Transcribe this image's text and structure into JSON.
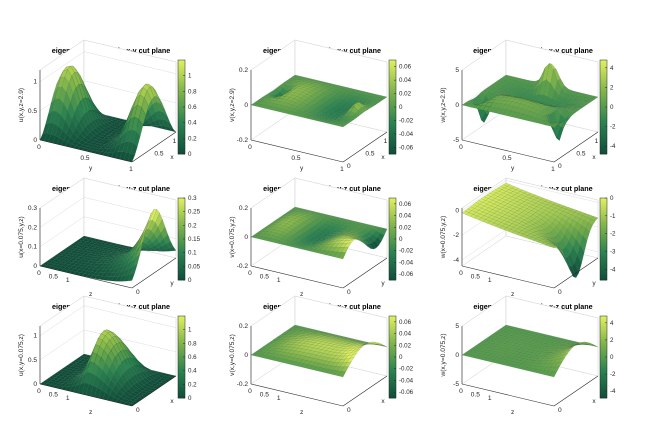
{
  "chart_data": [
    {
      "type": "surface",
      "title": "eigenmode u(x,y,z) in x-y cut plane",
      "xlabel": "y",
      "ylabel": "x",
      "zlabel": "u(x,y,z=2.9)",
      "x_range": [
        0,
        1
      ],
      "y_range": [
        0,
        1.2
      ],
      "z_range": [
        0,
        1.2
      ],
      "x_ticks": [
        "0.5",
        "1"
      ],
      "y_ticks": [
        "0",
        "0.5",
        "1"
      ],
      "z_ticks": [
        "0",
        "0.5",
        "1"
      ],
      "colorbar": {
        "range": [
          0,
          1.2
        ],
        "ticks": [
          "0",
          "0.2",
          "0.4",
          "0.6",
          "0.8",
          "1"
        ]
      },
      "colormap": [
        "#0f4d3a",
        "#2a8250",
        "#7fb34a",
        "#e0f060"
      ]
    },
    {
      "type": "surface",
      "title": "eigenmode v(x,y,z) in x-y cut plane",
      "xlabel": "y",
      "ylabel": "x",
      "zlabel": "v(x,y,z=2.9)",
      "x_range": [
        0,
        1
      ],
      "y_range": [
        0,
        1.2
      ],
      "z_range": [
        -0.2,
        0.2
      ],
      "x_ticks": [
        "0",
        "0.5",
        "1"
      ],
      "y_ticks": [
        "0",
        "0.5",
        "1"
      ],
      "z_ticks": [
        "-0.2",
        "0",
        "0.2"
      ],
      "colorbar": {
        "range": [
          -0.07,
          0.07
        ],
        "ticks": [
          "-0.06",
          "-0.04",
          "-0.02",
          "0",
          "0.02",
          "0.04",
          "0.06"
        ]
      },
      "colormap": [
        "#0f4d3a",
        "#2a8250",
        "#7fb34a",
        "#e0f060"
      ]
    },
    {
      "type": "surface",
      "title": "eigenmode w(x,y,z) in x-y cut plane",
      "xlabel": "y",
      "ylabel": "x",
      "zlabel": "w(x,y,z=2.9)",
      "x_range": [
        0,
        1
      ],
      "y_range": [
        0,
        1.2
      ],
      "z_range": [
        -5,
        5
      ],
      "x_ticks": [
        "0",
        "0.5",
        "1"
      ],
      "y_ticks": [
        "0",
        "0.5",
        "1"
      ],
      "z_ticks": [
        "-5",
        "0",
        "5"
      ],
      "colorbar": {
        "range": [
          -4.8,
          4.8
        ],
        "ticks": [
          "-4",
          "-2",
          "0",
          "2",
          "4"
        ]
      },
      "colormap": [
        "#0f4d3a",
        "#2a8250",
        "#7fb34a",
        "#e0f060"
      ]
    },
    {
      "type": "surface",
      "title": "eigenmode u(x,y,z) in y-z cut plane",
      "xlabel": "z",
      "ylabel": "y",
      "zlabel": "u(x=0.075,y,z)",
      "x_range": [
        0,
        3.2
      ],
      "y_range": [
        0,
        1
      ],
      "z_range": [
        0,
        0.3
      ],
      "x_ticks": [
        "0",
        "1",
        "2",
        "3"
      ],
      "y_ticks": [
        "0",
        "0.5",
        "1"
      ],
      "z_ticks": [
        "0",
        "0.1",
        "0.2",
        "0.3"
      ],
      "colorbar": {
        "range": [
          0,
          0.3
        ],
        "ticks": [
          "0",
          "0.05",
          "0.1",
          "0.15",
          "0.2",
          "0.25",
          "0.3"
        ]
      },
      "colormap": [
        "#0f4d3a",
        "#2a8250",
        "#7fb34a",
        "#e0f060"
      ]
    },
    {
      "type": "surface",
      "title": "eigenmode v(x,y,z) in y-z cut plane",
      "xlabel": "z",
      "ylabel": "y",
      "zlabel": "v(x=0.075,y,z)",
      "x_range": [
        0,
        3.2
      ],
      "y_range": [
        0,
        1
      ],
      "z_range": [
        -0.2,
        0.2
      ],
      "x_ticks": [
        "0",
        "1",
        "2",
        "3"
      ],
      "y_ticks": [
        "0",
        "0.5",
        "1"
      ],
      "z_ticks": [
        "-0.2",
        "0",
        "0.2"
      ],
      "colorbar": {
        "range": [
          -0.07,
          0.07
        ],
        "ticks": [
          "-0.06",
          "-0.04",
          "-0.02",
          "0",
          "0.02",
          "0.04",
          "0.06"
        ]
      },
      "colormap": [
        "#0f4d3a",
        "#2a8250",
        "#7fb34a",
        "#e0f060"
      ]
    },
    {
      "type": "surface",
      "title": "eigenmode w(x,y,z) in y-z cut plane",
      "xlabel": "z",
      "ylabel": "y",
      "zlabel": "w(x=0.075,y,z)",
      "x_range": [
        0,
        3.2
      ],
      "y_range": [
        0,
        1
      ],
      "z_range": [
        -4.5,
        0.2
      ],
      "x_ticks": [
        "0",
        "1",
        "2",
        "3"
      ],
      "y_ticks": [
        "0",
        "0.5",
        "1"
      ],
      "z_ticks": [
        "-4",
        "-2",
        "0"
      ],
      "colorbar": {
        "range": [
          -4.6,
          0
        ],
        "ticks": [
          "-4",
          "-3",
          "-2",
          "-1",
          "0"
        ]
      },
      "colormap": [
        "#0f4d3a",
        "#2a8250",
        "#7fb34a",
        "#e0f060"
      ]
    },
    {
      "type": "surface",
      "title": "eigenmode u(x,y,z) in x-z cut plane",
      "xlabel": "z",
      "ylabel": "x",
      "zlabel": "u(x,y=0.075,z)",
      "x_range": [
        0,
        3.2
      ],
      "y_range": [
        0,
        1
      ],
      "z_range": [
        0,
        1.2
      ],
      "x_ticks": [
        "0",
        "1",
        "2",
        "3"
      ],
      "y_ticks": [
        "0",
        "0.5",
        "1"
      ],
      "z_ticks": [
        "0",
        "0.5",
        "1"
      ],
      "colorbar": {
        "range": [
          0,
          1.2
        ],
        "ticks": [
          "0",
          "0.2",
          "0.4",
          "0.6",
          "0.8",
          "1"
        ]
      },
      "colormap": [
        "#0f4d3a",
        "#2a8250",
        "#7fb34a",
        "#e0f060"
      ]
    },
    {
      "type": "surface",
      "title": "eigenmode v(x,y,z) in x-z cut plane",
      "xlabel": "z",
      "ylabel": "x",
      "zlabel": "v(x,y=0.075,z)",
      "x_range": [
        0,
        3.2
      ],
      "y_range": [
        0,
        1
      ],
      "z_range": [
        -0.2,
        0.2
      ],
      "x_ticks": [
        "0",
        "1",
        "2",
        "3"
      ],
      "y_ticks": [
        "0",
        "0.5",
        "1"
      ],
      "z_ticks": [
        "-0.2",
        "0",
        "0.2"
      ],
      "colorbar": {
        "range": [
          -0.07,
          0.07
        ],
        "ticks": [
          "-0.06",
          "-0.04",
          "-0.02",
          "0",
          "0.02",
          "0.04",
          "0.06"
        ]
      },
      "colormap": [
        "#0f4d3a",
        "#2a8250",
        "#7fb34a",
        "#e0f060"
      ]
    },
    {
      "type": "surface",
      "title": "eigenmode w(x,y,z) in x-z cut plane",
      "xlabel": "z",
      "ylabel": "x",
      "zlabel": "w(x,y=0.075,z)",
      "x_range": [
        0,
        3.2
      ],
      "y_range": [
        0,
        1
      ],
      "z_range": [
        -5,
        5
      ],
      "x_ticks": [
        "0",
        "1",
        "2",
        "3"
      ],
      "y_ticks": [
        "0",
        "0.5",
        "1"
      ],
      "z_ticks": [
        "-5",
        "0",
        "5"
      ],
      "colorbar": {
        "range": [
          -4.8,
          4.8
        ],
        "ticks": [
          "-4",
          "-2",
          "0",
          "2",
          "4"
        ]
      },
      "colormap": [
        "#0f4d3a",
        "#2a8250",
        "#7fb34a",
        "#e0f060"
      ]
    }
  ]
}
